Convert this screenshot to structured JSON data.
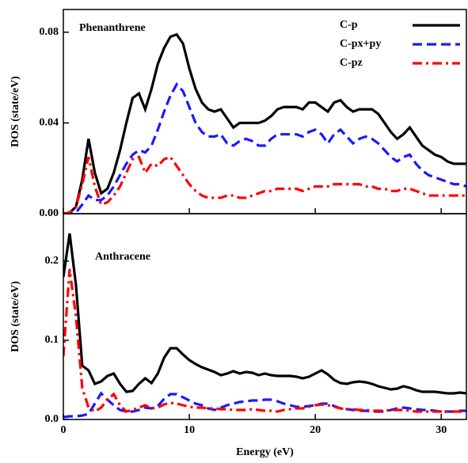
{
  "chart_data": [
    {
      "type": "line",
      "title": "Phenanthrene",
      "ylabel": "DOS (state/eV)",
      "xlim": [
        0,
        32
      ],
      "xticks": [
        0,
        10,
        20,
        30
      ],
      "xtick_labels": false,
      "ylim": [
        0,
        0.09
      ],
      "yticks": [
        {
          "value": 0,
          "label": "0.00"
        },
        {
          "value": 0.04,
          "label": "0.04"
        },
        {
          "value": 0.08,
          "label": "0.08"
        }
      ],
      "legend": "upper right",
      "x": [
        0,
        0.5,
        1,
        1.5,
        2,
        2.5,
        3,
        3.5,
        4,
        4.5,
        5,
        5.5,
        6,
        6.5,
        7,
        7.5,
        8,
        8.5,
        9,
        9.5,
        10,
        10.5,
        11,
        11.5,
        12,
        12.5,
        13,
        13.5,
        14,
        14.5,
        15,
        15.5,
        16,
        16.5,
        17,
        17.5,
        18,
        18.5,
        19,
        19.5,
        20,
        20.5,
        21,
        21.5,
        22,
        22.5,
        23,
        23.5,
        24,
        24.5,
        25,
        25.5,
        26,
        26.5,
        27,
        27.5,
        28,
        28.5,
        29,
        29.5,
        30,
        30.5,
        31,
        31.5,
        32
      ],
      "series": [
        {
          "name": "C-p",
          "color": "#000000",
          "dash": "solid",
          "values": [
            0,
            0.0005,
            0.003,
            0.015,
            0.033,
            0.018,
            0.009,
            0.011,
            0.018,
            0.028,
            0.04,
            0.051,
            0.053,
            0.046,
            0.055,
            0.066,
            0.073,
            0.078,
            0.079,
            0.075,
            0.064,
            0.055,
            0.049,
            0.046,
            0.045,
            0.046,
            0.042,
            0.038,
            0.04,
            0.04,
            0.04,
            0.04,
            0.041,
            0.043,
            0.046,
            0.047,
            0.047,
            0.047,
            0.046,
            0.049,
            0.049,
            0.047,
            0.045,
            0.049,
            0.05,
            0.047,
            0.045,
            0.046,
            0.046,
            0.046,
            0.044,
            0.04,
            0.036,
            0.033,
            0.035,
            0.038,
            0.034,
            0.03,
            0.028,
            0.026,
            0.025,
            0.023,
            0.022,
            0.022,
            0.022
          ]
        },
        {
          "name": "C-px+py",
          "color": "#1a1aff",
          "dash": "dashed",
          "values": [
            0,
            0,
            0.0005,
            0.004,
            0.008,
            0.006,
            0.006,
            0.008,
            0.012,
            0.017,
            0.022,
            0.026,
            0.028,
            0.027,
            0.03,
            0.037,
            0.045,
            0.052,
            0.057,
            0.054,
            0.047,
            0.04,
            0.036,
            0.034,
            0.034,
            0.035,
            0.031,
            0.03,
            0.032,
            0.033,
            0.032,
            0.03,
            0.03,
            0.033,
            0.035,
            0.035,
            0.035,
            0.035,
            0.034,
            0.036,
            0.037,
            0.035,
            0.031,
            0.035,
            0.037,
            0.034,
            0.031,
            0.033,
            0.034,
            0.033,
            0.031,
            0.028,
            0.025,
            0.023,
            0.025,
            0.026,
            0.022,
            0.019,
            0.017,
            0.016,
            0.015,
            0.014,
            0.013,
            0.013,
            0.012
          ]
        },
        {
          "name": "C-pz",
          "color": "#ff0000",
          "dash": "dashdot",
          "values": [
            0,
            0.0005,
            0.003,
            0.013,
            0.025,
            0.012,
            0.004,
            0.005,
            0.008,
            0.012,
            0.018,
            0.024,
            0.025,
            0.018,
            0.022,
            0.021,
            0.024,
            0.025,
            0.021,
            0.017,
            0.013,
            0.01,
            0.008,
            0.007,
            0.007,
            0.007,
            0.008,
            0.008,
            0.007,
            0.007,
            0.008,
            0.009,
            0.01,
            0.01,
            0.011,
            0.011,
            0.011,
            0.011,
            0.01,
            0.011,
            0.012,
            0.012,
            0.012,
            0.013,
            0.013,
            0.013,
            0.013,
            0.013,
            0.012,
            0.012,
            0.011,
            0.011,
            0.01,
            0.01,
            0.011,
            0.011,
            0.01,
            0.009,
            0.008,
            0.008,
            0.008,
            0.008,
            0.008,
            0.008,
            0.008
          ]
        }
      ]
    },
    {
      "type": "line",
      "title": "Anthracene",
      "ylabel": "DOS (state/eV)",
      "xlabel": "Energy (eV)",
      "xlim": [
        0,
        32
      ],
      "xticks": [
        0,
        10,
        20,
        30
      ],
      "xtick_labels": true,
      "ylim": [
        0,
        0.26
      ],
      "yticks": [
        {
          "value": 0,
          "label": "0.0"
        },
        0.1,
        0.2
      ],
      "x": [
        0,
        0.5,
        1,
        1.5,
        2,
        2.5,
        3,
        3.5,
        4,
        4.5,
        5,
        5.5,
        6,
        6.5,
        7,
        7.5,
        8,
        8.5,
        9,
        9.5,
        10,
        10.5,
        11,
        11.5,
        12,
        12.5,
        13,
        13.5,
        14,
        14.5,
        15,
        15.5,
        16,
        16.5,
        17,
        17.5,
        18,
        18.5,
        19,
        19.5,
        20,
        20.5,
        21,
        21.5,
        22,
        22.5,
        23,
        23.5,
        24,
        24.5,
        25,
        25.5,
        26,
        26.5,
        27,
        27.5,
        28,
        28.5,
        29,
        29.5,
        30,
        30.5,
        31,
        31.5,
        32
      ],
      "series": [
        {
          "color": "#000000",
          "dash": "solid",
          "values": [
            0.18,
            0.235,
            0.17,
            0.068,
            0.062,
            0.045,
            0.048,
            0.055,
            0.058,
            0.045,
            0.035,
            0.036,
            0.045,
            0.052,
            0.046,
            0.058,
            0.078,
            0.09,
            0.09,
            0.082,
            0.075,
            0.07,
            0.066,
            0.063,
            0.06,
            0.056,
            0.058,
            0.061,
            0.058,
            0.06,
            0.059,
            0.056,
            0.058,
            0.056,
            0.055,
            0.055,
            0.055,
            0.054,
            0.052,
            0.054,
            0.058,
            0.062,
            0.057,
            0.05,
            0.046,
            0.045,
            0.047,
            0.048,
            0.047,
            0.045,
            0.042,
            0.04,
            0.038,
            0.039,
            0.042,
            0.04,
            0.037,
            0.035,
            0.035,
            0.035,
            0.034,
            0.033,
            0.033,
            0.034,
            0.033
          ]
        },
        {
          "color": "#1a1aff",
          "dash": "dashed",
          "values": [
            0.003,
            0.004,
            0.004,
            0.005,
            0.007,
            0.02,
            0.033,
            0.025,
            0.018,
            0.012,
            0.01,
            0.01,
            0.012,
            0.015,
            0.014,
            0.017,
            0.026,
            0.032,
            0.032,
            0.028,
            0.024,
            0.02,
            0.018,
            0.014,
            0.012,
            0.015,
            0.018,
            0.02,
            0.022,
            0.023,
            0.024,
            0.024,
            0.025,
            0.025,
            0.023,
            0.02,
            0.018,
            0.016,
            0.016,
            0.017,
            0.018,
            0.02,
            0.02,
            0.017,
            0.014,
            0.013,
            0.012,
            0.011,
            0.011,
            0.01,
            0.01,
            0.01,
            0.012,
            0.014,
            0.015,
            0.014,
            0.013,
            0.012,
            0.012,
            0.011,
            0.01,
            0.01,
            0.01,
            0.011,
            0.011
          ]
        },
        {
          "color": "#ff0000",
          "dash": "dashdot",
          "values": [
            0.08,
            0.19,
            0.13,
            0.04,
            0.015,
            0.01,
            0.015,
            0.025,
            0.032,
            0.018,
            0.01,
            0.012,
            0.015,
            0.018,
            0.014,
            0.015,
            0.019,
            0.021,
            0.02,
            0.018,
            0.016,
            0.015,
            0.015,
            0.014,
            0.014,
            0.013,
            0.013,
            0.012,
            0.012,
            0.012,
            0.013,
            0.012,
            0.011,
            0.011,
            0.01,
            0.012,
            0.013,
            0.014,
            0.014,
            0.016,
            0.018,
            0.019,
            0.018,
            0.016,
            0.014,
            0.013,
            0.013,
            0.012,
            0.012,
            0.011,
            0.011,
            0.011,
            0.012,
            0.012,
            0.012,
            0.011,
            0.01,
            0.01,
            0.01,
            0.01,
            0.01,
            0.01,
            0.01,
            0.01,
            0.01
          ]
        }
      ]
    }
  ]
}
